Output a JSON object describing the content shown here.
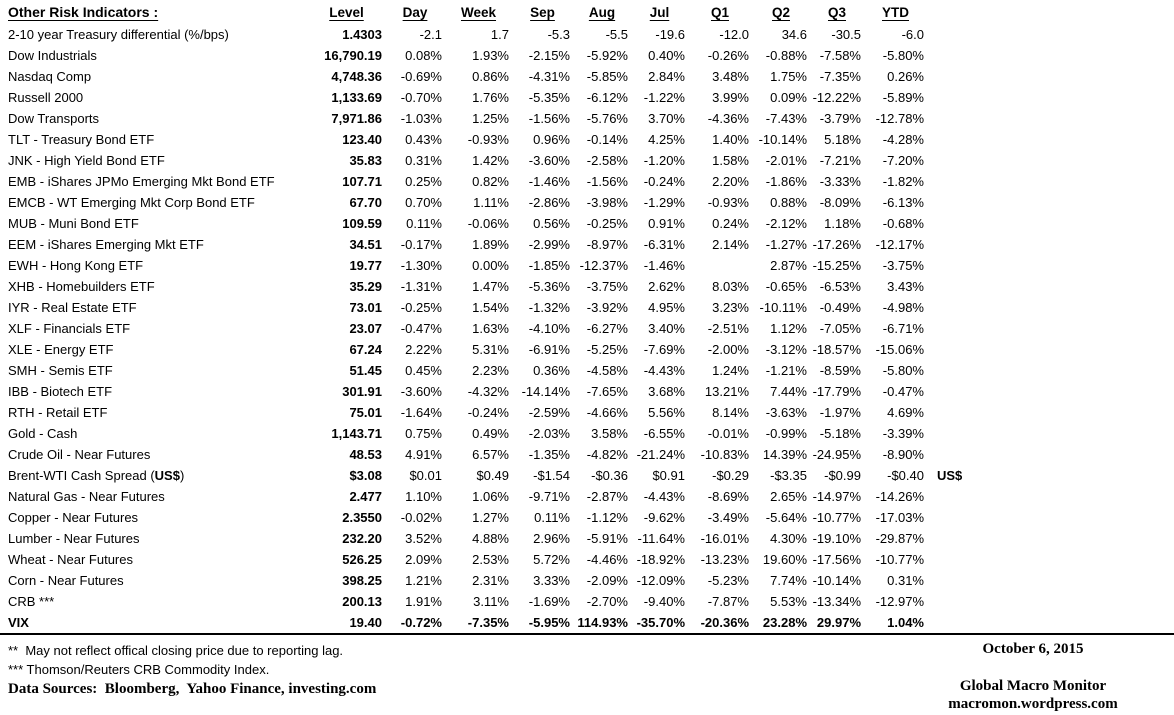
{
  "table": {
    "title": "Other Risk Indicators :",
    "columns": [
      "Level",
      "Day",
      "Week",
      "Sep",
      "Aug",
      "Jul",
      "Q1",
      "Q2",
      "Q3",
      "YTD"
    ],
    "rows": [
      {
        "label": "2-10 year Treasury differential (%/bps)",
        "values": [
          "1.4303",
          "-2.1",
          "1.7",
          "-5.3",
          "-5.5",
          "-19.6",
          "-12.0",
          "34.6",
          "-30.5",
          "-6.0"
        ]
      },
      {
        "label": "Dow Industrials",
        "values": [
          "16,790.19",
          "0.08%",
          "1.93%",
          "-2.15%",
          "-5.92%",
          "0.40%",
          "-0.26%",
          "-0.88%",
          "-7.58%",
          "-5.80%"
        ]
      },
      {
        "label": "Nasdaq Comp",
        "values": [
          "4,748.36",
          "-0.69%",
          "0.86%",
          "-4.31%",
          "-5.85%",
          "2.84%",
          "3.48%",
          "1.75%",
          "-7.35%",
          "0.26%"
        ]
      },
      {
        "label": "Russell 2000",
        "values": [
          "1,133.69",
          "-0.70%",
          "1.76%",
          "-5.35%",
          "-6.12%",
          "-1.22%",
          "3.99%",
          "0.09%",
          "-12.22%",
          "-5.89%"
        ]
      },
      {
        "label": "Dow Transports",
        "values": [
          "7,971.86",
          "-1.03%",
          "1.25%",
          "-1.56%",
          "-5.76%",
          "3.70%",
          "-4.36%",
          "-7.43%",
          "-3.79%",
          "-12.78%"
        ]
      },
      {
        "label": "TLT - Treasury Bond ETF",
        "values": [
          "123.40",
          "0.43%",
          "-0.93%",
          "0.96%",
          "-0.14%",
          "4.25%",
          "1.40%",
          "-10.14%",
          "5.18%",
          "-4.28%"
        ]
      },
      {
        "label": "JNK - High Yield Bond ETF",
        "values": [
          "35.83",
          "0.31%",
          "1.42%",
          "-3.60%",
          "-2.58%",
          "-1.20%",
          "1.58%",
          "-2.01%",
          "-7.21%",
          "-7.20%"
        ]
      },
      {
        "label": "EMB - iShares JPMo Emerging Mkt Bond ETF",
        "values": [
          "107.71",
          "0.25%",
          "0.82%",
          "-1.46%",
          "-1.56%",
          "-0.24%",
          "2.20%",
          "-1.86%",
          "-3.33%",
          "-1.82%"
        ]
      },
      {
        "label": "EMCB - WT Emerging Mkt Corp Bond ETF",
        "values": [
          "67.70",
          "0.70%",
          "1.11%",
          "-2.86%",
          "-3.98%",
          "-1.29%",
          "-0.93%",
          "0.88%",
          "-8.09%",
          "-6.13%"
        ]
      },
      {
        "label": "MUB - Muni Bond ETF",
        "values": [
          "109.59",
          "0.11%",
          "-0.06%",
          "0.56%",
          "-0.25%",
          "0.91%",
          "0.24%",
          "-2.12%",
          "1.18%",
          "-0.68%"
        ]
      },
      {
        "label": "EEM - iShares Emerging Mkt ETF",
        "values": [
          "34.51",
          "-0.17%",
          "1.89%",
          "-2.99%",
          "-8.97%",
          "-6.31%",
          "2.14%",
          "-1.27%",
          "-17.26%",
          "-12.17%"
        ]
      },
      {
        "label": "EWH - Hong Kong ETF",
        "values": [
          "19.77",
          "-1.30%",
          "0.00%",
          "-1.85%",
          "-12.37%",
          "-1.46%",
          "",
          "2.87%",
          "-15.25%",
          "-3.75%"
        ]
      },
      {
        "label": "XHB - Homebuilders ETF",
        "values": [
          "35.29",
          "-1.31%",
          "1.47%",
          "-5.36%",
          "-3.75%",
          "2.62%",
          "8.03%",
          "-0.65%",
          "-6.53%",
          "3.43%"
        ]
      },
      {
        "label": "IYR - Real Estate ETF",
        "values": [
          "73.01",
          "-0.25%",
          "1.54%",
          "-1.32%",
          "-3.92%",
          "4.95%",
          "3.23%",
          "-10.11%",
          "-0.49%",
          "-4.98%"
        ]
      },
      {
        "label": "XLF - Financials ETF",
        "values": [
          "23.07",
          "-0.47%",
          "1.63%",
          "-4.10%",
          "-6.27%",
          "3.40%",
          "-2.51%",
          "1.12%",
          "-7.05%",
          "-6.71%"
        ]
      },
      {
        "label": "XLE - Energy ETF",
        "values": [
          "67.24",
          "2.22%",
          "5.31%",
          "-6.91%",
          "-5.25%",
          "-7.69%",
          "-2.00%",
          "-3.12%",
          "-18.57%",
          "-15.06%"
        ]
      },
      {
        "label": "SMH - Semis ETF",
        "values": [
          "51.45",
          "0.45%",
          "2.23%",
          "0.36%",
          "-4.58%",
          "-4.43%",
          "1.24%",
          "-1.21%",
          "-8.59%",
          "-5.80%"
        ]
      },
      {
        "label": "IBB - Biotech ETF",
        "values": [
          "301.91",
          "-3.60%",
          "-4.32%",
          "-14.14%",
          "-7.65%",
          "3.68%",
          "13.21%",
          "7.44%",
          "-17.79%",
          "-0.47%"
        ]
      },
      {
        "label": "RTH - Retail ETF",
        "values": [
          "75.01",
          "-1.64%",
          "-0.24%",
          "-2.59%",
          "-4.66%",
          "5.56%",
          "8.14%",
          "-3.63%",
          "-1.97%",
          "4.69%"
        ]
      },
      {
        "label": "Gold - Cash",
        "values": [
          "1,143.71",
          "0.75%",
          "0.49%",
          "-2.03%",
          "3.58%",
          "-6.55%",
          "-0.01%",
          "-0.99%",
          "-5.18%",
          "-3.39%"
        ]
      },
      {
        "label": "Crude Oil - Near Futures",
        "values": [
          "48.53",
          "4.91%",
          "6.57%",
          "-1.35%",
          "-4.82%",
          "-21.24%",
          "-10.83%",
          "14.39%",
          "-24.95%",
          "-8.90%"
        ]
      },
      {
        "label": "Brent-WTI Cash Spread (US$)",
        "bold_in_label": "US$",
        "note": "US$",
        "values": [
          "$3.08",
          "$0.01",
          "$0.49",
          "-$1.54",
          "-$0.36",
          "$0.91",
          "-$0.29",
          "-$3.35",
          "-$0.99",
          "-$0.40"
        ]
      },
      {
        "label": "Natural Gas - Near Futures",
        "values": [
          "2.477",
          "1.10%",
          "1.06%",
          "-9.71%",
          "-2.87%",
          "-4.43%",
          "-8.69%",
          "2.65%",
          "-14.97%",
          "-14.26%"
        ]
      },
      {
        "label": "Copper - Near Futures",
        "values": [
          "2.3550",
          "-0.02%",
          "1.27%",
          "0.11%",
          "-1.12%",
          "-9.62%",
          "-3.49%",
          "-5.64%",
          "-10.77%",
          "-17.03%"
        ]
      },
      {
        "label": "Lumber - Near Futures",
        "values": [
          "232.20",
          "3.52%",
          "4.88%",
          "2.96%",
          "-5.91%",
          "-11.64%",
          "-16.01%",
          "4.30%",
          "-19.10%",
          "-29.87%"
        ]
      },
      {
        "label": "Wheat - Near Futures",
        "values": [
          "526.25",
          "2.09%",
          "2.53%",
          "5.72%",
          "-4.46%",
          "-18.92%",
          "-13.23%",
          "19.60%",
          "-17.56%",
          "-10.77%"
        ]
      },
      {
        "label": "Corn - Near Futures",
        "values": [
          "398.25",
          "1.21%",
          "2.31%",
          "3.33%",
          "-2.09%",
          "-12.09%",
          "-5.23%",
          "7.74%",
          "-10.14%",
          "0.31%"
        ]
      },
      {
        "label": "CRB ***",
        "values": [
          "200.13",
          "1.91%",
          "3.11%",
          "-1.69%",
          "-2.70%",
          "-9.40%",
          "-7.87%",
          "5.53%",
          "-13.34%",
          "-12.97%"
        ]
      },
      {
        "label": "VIX",
        "bold": true,
        "values": [
          "19.40",
          "-0.72%",
          "-7.35%",
          "-5.95%",
          "114.93%",
          "-35.70%",
          "-20.36%",
          "23.28%",
          "29.97%",
          "1.04%"
        ]
      }
    ]
  },
  "footer": {
    "notes": [
      "**  May not reflect offical closing price due to reporting lag.",
      "*** Thomson/Reuters CRB Commodity Index."
    ],
    "sources": "Data Sources:  Bloomberg,  Yahoo Finance, investing.com",
    "date": "October 6, 2015",
    "brand": "Global Macro Monitor",
    "site": "macromon.wordpress.com"
  }
}
